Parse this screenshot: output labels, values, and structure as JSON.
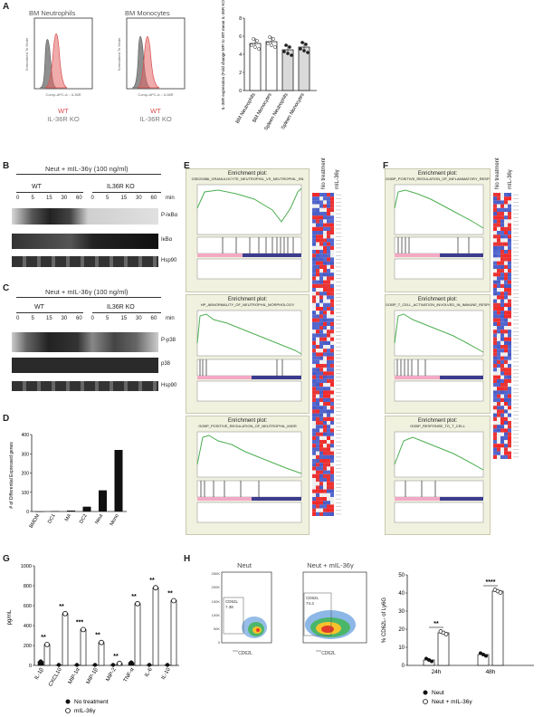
{
  "panels": {
    "A": "A",
    "B": "B",
    "C": "C",
    "D": "D",
    "E": "E",
    "F": "F",
    "G": "G",
    "H": "H"
  },
  "panel_a": {
    "hist_titles": [
      "BM Neutrophils",
      "BM Monocytes"
    ],
    "hist_ylabel": "Normalized To Mode",
    "hist_xlabel": "Comp-APC-A :: IL36R",
    "hist_yticks": [
      "100",
      "80",
      "60",
      "40",
      "20",
      "0"
    ],
    "legend_wt": "WT",
    "legend_ko": "IL-36R KO",
    "wt_color": "#e36666",
    "ko_color": "#8f8f8f"
  },
  "panel_b": {
    "title": "Neut + mIL-36γ (100 ng/ml)",
    "groups": [
      "WT",
      "IL36R KO"
    ],
    "times": [
      "0",
      "5",
      "15",
      "30",
      "60",
      "0",
      "5",
      "15",
      "30",
      "60"
    ],
    "unit": "min",
    "rows": [
      "P-IκBα",
      "IκBα",
      "Hsp90"
    ]
  },
  "panel_c": {
    "title": "Neut + mIL-36γ (100 ng/ml)",
    "groups": [
      "WT",
      "IL36R KO"
    ],
    "times": [
      "0",
      "5",
      "15",
      "30",
      "60",
      "0",
      "5",
      "15",
      "30",
      "60"
    ],
    "unit": "min",
    "rows": [
      "P-p38",
      "p38",
      "Hsp90"
    ]
  },
  "panel_e": {
    "legend_header": [
      "No treatment",
      "mIL-36γ"
    ],
    "plots": [
      {
        "title": "Enrichment plot:",
        "subtitle": "GSE22886_GRANULOCYTE_NEUTROPHIL_VS_NEUTROPHIL_DN"
      },
      {
        "title": "Enrichment plot:",
        "subtitle": "HP_ABNORMALITY_OF_NEUTROPHIL_MORPHOLOGY"
      },
      {
        "title": "Enrichment plot:",
        "subtitle": "GOBP_POSITIVE_REGULATION_OF_NEUTROPHIL_MIGR"
      }
    ]
  },
  "panel_f": {
    "legend_header": [
      "No treatment",
      "mIL-36γ"
    ],
    "plots": [
      {
        "title": "Enrichment plot:",
        "subtitle": "GOBP_POSITIVE_REGULATION_OF_INFLAMMATORY_RESPONSE"
      },
      {
        "title": "Enrichment plot:",
        "subtitle": "GOBP_T_CELL_ACTIVATION_INVOLVED_IN_IMMUNE_RESPONSE"
      },
      {
        "title": "Enrichment plot:",
        "subtitle": "GOBP_RESPONSE_TO_T_CELL"
      }
    ]
  },
  "panel_h": {
    "dot_titles": [
      "Neut",
      "Neut + mIL-36γ"
    ],
    "dot_xlabel": "CD62L",
    "dot_yticks": [
      "250K",
      "200K",
      "150K",
      "100K",
      "50K",
      "0"
    ],
    "gate_label": "CD62L",
    "gate_pct": [
      "7.38",
      "74.3"
    ]
  },
  "chart_data": [
    {
      "type": "bar",
      "panel": "A",
      "categories": [
        "BM Neutrophils",
        "BM Monocytes",
        "Spleen Neutrophils",
        "Spleen Monocytes"
      ],
      "values": [
        5.2,
        5.4,
        4.5,
        4.8
      ],
      "ylabel": "IL-36R expression (Fold change MFI to WT mean IL-36R KO)",
      "ylim": [
        0,
        8
      ],
      "yticks": [
        "0",
        "2",
        "4",
        "6",
        "8"
      ],
      "colors": [
        "#ffffff",
        "#ffffff",
        "#d9d9d9",
        "#d9d9d9"
      ]
    },
    {
      "type": "bar",
      "panel": "D",
      "categories": [
        "BMDM",
        "DC1",
        "MA",
        "DC2",
        "Neut",
        "Mono"
      ],
      "values": [
        0,
        2,
        5,
        25,
        110,
        320
      ],
      "ylabel": "# of Differential Expressed genes",
      "ylim": [
        0,
        400
      ],
      "yticks": [
        "0",
        "100",
        "200",
        "300",
        "400"
      ]
    },
    {
      "type": "bar",
      "panel": "G",
      "categories": [
        "IL-1β",
        "CXCL10",
        "MIP-1α",
        "MIP-1β",
        "MIP-2",
        "TNF-α",
        "IL-6",
        "IL-10"
      ],
      "series": [
        {
          "name": "No treatment",
          "values": [
            40,
            5,
            5,
            5,
            5,
            30,
            5,
            5
          ]
        },
        {
          "name": "mIL-36γ",
          "values": [
            210,
            520,
            360,
            230,
            20,
            620,
            780,
            650
          ]
        }
      ],
      "ylabel": "pg/mL",
      "ylim": [
        0,
        1000
      ],
      "yticks": [
        "0",
        "200",
        "400",
        "600",
        "800",
        "1000"
      ],
      "significance": [
        "**",
        "**",
        "***",
        "**",
        "**",
        "**",
        "**",
        "**"
      ]
    },
    {
      "type": "bar",
      "panel": "H",
      "categories": [
        "24h",
        "48h"
      ],
      "series": [
        {
          "name": "Neut",
          "values": [
            3,
            6
          ]
        },
        {
          "name": "Neut + mIL-36γ",
          "values": [
            18,
            41
          ]
        }
      ],
      "ylabel": "% CD62L- of Ly6G",
      "ylim": [
        0,
        50
      ],
      "yticks": [
        "0",
        "10",
        "20",
        "30",
        "40",
        "50"
      ],
      "significance": [
        "**",
        "****"
      ]
    }
  ]
}
